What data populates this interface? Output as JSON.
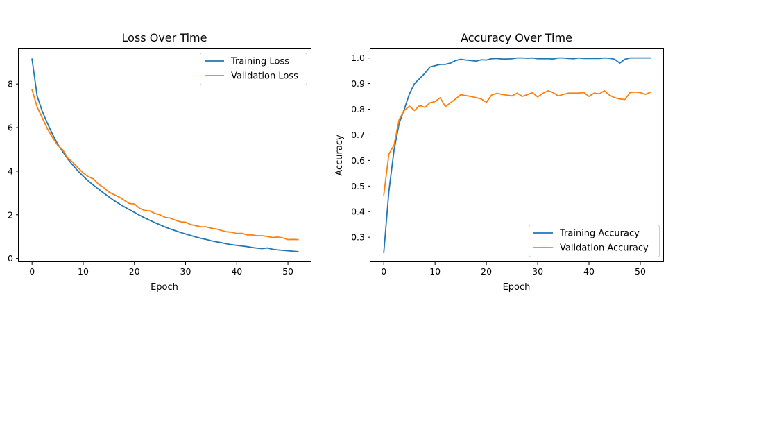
{
  "chart_data": [
    {
      "type": "line",
      "title": "Loss Over Time",
      "xlabel": "Epoch",
      "ylabel": "",
      "xlim": [
        -2.6,
        54.6
      ],
      "ylim": [
        -0.17,
        9.63
      ],
      "xticks": [
        0,
        10,
        20,
        30,
        40,
        50
      ],
      "yticks": [
        0,
        2,
        4,
        6,
        8
      ],
      "grid": false,
      "legend": "top-right",
      "x": [
        0,
        1,
        2,
        3,
        4,
        5,
        6,
        7,
        8,
        9,
        10,
        11,
        12,
        13,
        14,
        15,
        16,
        17,
        18,
        19,
        20,
        21,
        22,
        23,
        24,
        25,
        26,
        27,
        28,
        29,
        30,
        31,
        32,
        33,
        34,
        35,
        36,
        37,
        38,
        39,
        40,
        41,
        42,
        43,
        44,
        45,
        46,
        47,
        48,
        49,
        50,
        51,
        52
      ],
      "series": [
        {
          "name": "Training Loss",
          "color": "#1f77b4",
          "values": [
            9.15,
            7.45,
            6.75,
            6.2,
            5.7,
            5.25,
            4.9,
            4.55,
            4.27,
            4.0,
            3.77,
            3.55,
            3.36,
            3.18,
            3.0,
            2.83,
            2.66,
            2.51,
            2.37,
            2.24,
            2.11,
            1.98,
            1.86,
            1.75,
            1.64,
            1.54,
            1.44,
            1.35,
            1.27,
            1.19,
            1.12,
            1.05,
            0.98,
            0.92,
            0.87,
            0.81,
            0.76,
            0.72,
            0.67,
            0.63,
            0.6,
            0.57,
            0.54,
            0.5,
            0.47,
            0.45,
            0.48,
            0.42,
            0.39,
            0.37,
            0.35,
            0.33,
            0.31
          ]
        },
        {
          "name": "Validation Loss",
          "color": "#ff7f0e",
          "values": [
            7.75,
            6.95,
            6.45,
            5.95,
            5.55,
            5.2,
            4.98,
            4.6,
            4.4,
            4.15,
            3.92,
            3.75,
            3.65,
            3.4,
            3.25,
            3.05,
            2.93,
            2.82,
            2.67,
            2.52,
            2.5,
            2.3,
            2.2,
            2.18,
            2.06,
            2.0,
            1.88,
            1.85,
            1.75,
            1.68,
            1.66,
            1.55,
            1.5,
            1.45,
            1.45,
            1.38,
            1.35,
            1.28,
            1.22,
            1.2,
            1.14,
            1.15,
            1.08,
            1.07,
            1.04,
            1.04,
            1.0,
            0.96,
            0.98,
            0.94,
            0.86,
            0.87,
            0.86
          ]
        }
      ]
    },
    {
      "type": "line",
      "title": "Accuracy Over Time",
      "xlabel": "Epoch",
      "ylabel": "Accuracy",
      "xlim": [
        -2.6,
        54.6
      ],
      "ylim": [
        0.203,
        1.037
      ],
      "xticks": [
        0,
        10,
        20,
        30,
        40,
        50
      ],
      "yticks": [
        0.3,
        0.4,
        0.5,
        0.6,
        0.7,
        0.8,
        0.9,
        1.0
      ],
      "grid": false,
      "legend": "bottom-right",
      "x": [
        0,
        1,
        2,
        3,
        4,
        5,
        6,
        7,
        8,
        9,
        10,
        11,
        12,
        13,
        14,
        15,
        16,
        17,
        18,
        19,
        20,
        21,
        22,
        23,
        24,
        25,
        26,
        27,
        28,
        29,
        30,
        31,
        32,
        33,
        34,
        35,
        36,
        37,
        38,
        39,
        40,
        41,
        42,
        43,
        44,
        45,
        46,
        47,
        48,
        49,
        50,
        51,
        52
      ],
      "series": [
        {
          "name": "Training Accuracy",
          "color": "#1f77b4",
          "values": [
            0.24,
            0.48,
            0.64,
            0.745,
            0.8,
            0.86,
            0.9,
            0.92,
            0.94,
            0.965,
            0.97,
            0.975,
            0.975,
            0.98,
            0.99,
            0.995,
            0.992,
            0.99,
            0.988,
            0.993,
            0.992,
            0.997,
            0.998,
            0.996,
            0.996,
            0.997,
            1.0,
            1.0,
            0.999,
            1.0,
            0.997,
            0.997,
            0.997,
            0.996,
            1.0,
            1.0,
            0.998,
            0.997,
            1.0,
            0.998,
            0.998,
            0.998,
            0.998,
            1.0,
            0.999,
            0.995,
            0.98,
            0.995,
            1.0,
            1.0,
            1.0,
            1.0,
            1.0
          ]
        },
        {
          "name": "Validation Accuracy",
          "color": "#ff7f0e",
          "values": [
            0.465,
            0.625,
            0.66,
            0.76,
            0.795,
            0.812,
            0.795,
            0.815,
            0.807,
            0.825,
            0.83,
            0.845,
            0.81,
            0.825,
            0.84,
            0.857,
            0.853,
            0.85,
            0.845,
            0.84,
            0.827,
            0.855,
            0.862,
            0.858,
            0.855,
            0.852,
            0.863,
            0.85,
            0.857,
            0.865,
            0.848,
            0.862,
            0.872,
            0.865,
            0.852,
            0.858,
            0.863,
            0.863,
            0.863,
            0.865,
            0.85,
            0.863,
            0.86,
            0.872,
            0.855,
            0.845,
            0.84,
            0.838,
            0.865,
            0.867,
            0.865,
            0.858,
            0.867
          ]
        }
      ]
    }
  ]
}
